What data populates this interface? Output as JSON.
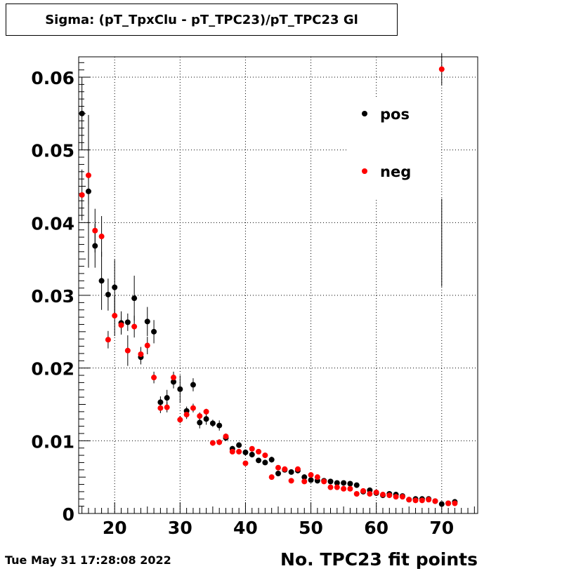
{
  "canvas_title": "Sigma: (pT_TpxClu - pT_TPC23)/pT_TPC23 Gl",
  "timestamp": "Tue May 31 17:28:08 2022",
  "chart_data": {
    "type": "scatter",
    "title": "Sigma: (pT_TpxClu - pT_TPC23)/pT_TPC23 Gl",
    "xlabel": "No. TPC23 fit points",
    "ylabel": "",
    "xlim": [
      14.5,
      75.5
    ],
    "ylim": [
      0,
      0.0628
    ],
    "xticks": [
      20,
      30,
      40,
      50,
      60,
      70
    ],
    "yticks": [
      0,
      0.01,
      0.02,
      0.03,
      0.04,
      0.05,
      0.06
    ],
    "ytick_labels": [
      "0",
      "0.01",
      "0.02",
      "0.03",
      "0.04",
      "0.05",
      "0.06"
    ],
    "grid": true,
    "legend_position": "top-right",
    "series": [
      {
        "name": "pos",
        "color": "#000000",
        "points": [
          [
            15,
            0.055,
            0.005
          ],
          [
            16,
            0.0443,
            0.0105
          ],
          [
            17,
            0.0368,
            0.003
          ],
          [
            18,
            0.032,
            0.004
          ],
          [
            19,
            0.0301,
            0.0022
          ],
          [
            20,
            0.0311,
            0.0038
          ],
          [
            21,
            0.0262,
            0.0016
          ],
          [
            22,
            0.0263,
            0.0012
          ],
          [
            23,
            0.0296,
            0.0031
          ],
          [
            24,
            0.0215,
            0.001
          ],
          [
            25,
            0.0264,
            0.002
          ],
          [
            26,
            0.025,
            0.0016
          ],
          [
            27,
            0.0153,
            0.0008
          ],
          [
            28,
            0.0159,
            0.0011
          ],
          [
            29,
            0.0181,
            0.0009
          ],
          [
            30,
            0.0171,
            0.0019
          ],
          [
            31,
            0.0141,
            0.0006
          ],
          [
            32,
            0.0177,
            0.0009
          ],
          [
            33,
            0.0125,
            0.0008
          ],
          [
            34,
            0.013,
            0.0008
          ],
          [
            35,
            0.0124,
            0.0005
          ],
          [
            36,
            0.0121,
            0.0007
          ],
          [
            37,
            0.0104,
            0.0004
          ],
          [
            38,
            0.0089,
            0.0004
          ],
          [
            39,
            0.0094,
            0.0004
          ],
          [
            40,
            0.0084,
            0.0004
          ],
          [
            41,
            0.0081,
            0.0004
          ],
          [
            42,
            0.0073,
            0.0003
          ],
          [
            43,
            0.007,
            0.0003
          ],
          [
            44,
            0.0074,
            0.0004
          ],
          [
            45,
            0.0055,
            0.0003
          ],
          [
            46,
            0.006,
            0.0003
          ],
          [
            47,
            0.0057,
            0.0002
          ],
          [
            48,
            0.0059,
            0.0002
          ],
          [
            49,
            0.005,
            0.0002
          ],
          [
            50,
            0.0046,
            0.0002
          ],
          [
            51,
            0.0045,
            0.0002
          ],
          [
            52,
            0.0045,
            0.0002
          ],
          [
            53,
            0.0044,
            0.0002
          ],
          [
            54,
            0.0042,
            0.0002
          ],
          [
            55,
            0.0042,
            0.0002
          ],
          [
            56,
            0.0041,
            0.0002
          ],
          [
            57,
            0.0039,
            0.0002
          ],
          [
            58,
            0.003,
            0.0002
          ],
          [
            59,
            0.0032,
            0.0002
          ],
          [
            60,
            0.0028,
            0.0002
          ],
          [
            61,
            0.0025,
            0.0002
          ],
          [
            62,
            0.0027,
            0.0002
          ],
          [
            63,
            0.0026,
            0.0002
          ],
          [
            64,
            0.0024,
            0.0002
          ],
          [
            65,
            0.0019,
            0.0002
          ],
          [
            66,
            0.002,
            0.0002
          ],
          [
            67,
            0.002,
            0.0002
          ],
          [
            68,
            0.002,
            0.0002
          ],
          [
            69,
            0.0017,
            0.0002
          ],
          [
            70,
            0.0013,
            0.0002
          ],
          [
            71,
            0.0014,
            0.0002
          ],
          [
            72,
            0.0016,
            0.0002
          ]
        ]
      },
      {
        "name": "neg",
        "color": "#ff0000",
        "points": [
          [
            15,
            0.0438,
            0.0035
          ],
          [
            16,
            0.0465,
            0.004
          ],
          [
            17,
            0.0389,
            0.003
          ],
          [
            18,
            0.0381,
            0.0028
          ],
          [
            19,
            0.0239,
            0.0012
          ],
          [
            20,
            0.0272,
            0.0028
          ],
          [
            21,
            0.0259,
            0.0012
          ],
          [
            22,
            0.0224,
            0.0021
          ],
          [
            23,
            0.0257,
            0.0015
          ],
          [
            24,
            0.0219,
            0.001
          ],
          [
            25,
            0.0231,
            0.0012
          ],
          [
            26,
            0.0187,
            0.0008
          ],
          [
            27,
            0.0145,
            0.0007
          ],
          [
            28,
            0.0146,
            0.0007
          ],
          [
            29,
            0.0187,
            0.0008
          ],
          [
            30,
            0.0129,
            0.0005
          ],
          [
            31,
            0.0136,
            0.0006
          ],
          [
            32,
            0.0145,
            0.0006
          ],
          [
            33,
            0.0134,
            0.0005
          ],
          [
            34,
            0.014,
            0.0004
          ],
          [
            35,
            0.0097,
            0.0004
          ],
          [
            36,
            0.0098,
            0.0004
          ],
          [
            37,
            0.0106,
            0.0004
          ],
          [
            38,
            0.0085,
            0.0003
          ],
          [
            39,
            0.0085,
            0.0003
          ],
          [
            40,
            0.0069,
            0.0003
          ],
          [
            41,
            0.0089,
            0.0003
          ],
          [
            42,
            0.0085,
            0.0003
          ],
          [
            43,
            0.008,
            0.0003
          ],
          [
            44,
            0.005,
            0.0002
          ],
          [
            45,
            0.0063,
            0.0003
          ],
          [
            46,
            0.0061,
            0.0002
          ],
          [
            47,
            0.0045,
            0.0002
          ],
          [
            48,
            0.0061,
            0.0002
          ],
          [
            49,
            0.0044,
            0.0002
          ],
          [
            50,
            0.0053,
            0.0002
          ],
          [
            51,
            0.005,
            0.0002
          ],
          [
            52,
            0.0044,
            0.0002
          ],
          [
            53,
            0.0036,
            0.0002
          ],
          [
            54,
            0.0036,
            0.0002
          ],
          [
            55,
            0.0034,
            0.0002
          ],
          [
            56,
            0.0034,
            0.0002
          ],
          [
            57,
            0.0027,
            0.0002
          ],
          [
            58,
            0.0031,
            0.0002
          ],
          [
            59,
            0.0027,
            0.0002
          ],
          [
            60,
            0.0029,
            0.0002
          ],
          [
            61,
            0.0026,
            0.0002
          ],
          [
            62,
            0.0025,
            0.0002
          ],
          [
            63,
            0.0023,
            0.0002
          ],
          [
            64,
            0.0023,
            0.0002
          ],
          [
            65,
            0.0019,
            0.0002
          ],
          [
            66,
            0.0018,
            0.0002
          ],
          [
            67,
            0.0018,
            0.0002
          ],
          [
            68,
            0.0019,
            0.0002
          ],
          [
            69,
            0.0017,
            0.0002
          ],
          [
            70,
            0.0611,
            0.0022
          ],
          [
            71,
            0.0014,
            0.0002
          ],
          [
            72,
            0.0014,
            0.0002
          ]
        ]
      }
    ],
    "extra_error_bar": {
      "x": 70,
      "y_low": 0.0312,
      "y_high": 0.0433,
      "color": "#000000"
    }
  }
}
